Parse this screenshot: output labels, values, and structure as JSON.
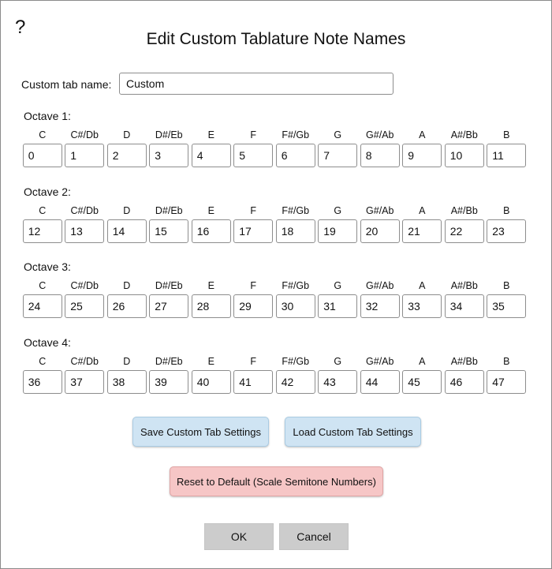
{
  "dialog": {
    "help_symbol": "?",
    "title": "Edit Custom Tablature Note Names",
    "custom_tab_name_label": "Custom tab name:",
    "custom_tab_name_value": "Custom"
  },
  "note_names": [
    "C",
    "C#/Db",
    "D",
    "D#/Eb",
    "E",
    "F",
    "F#/Gb",
    "G",
    "G#/Ab",
    "A",
    "A#/Bb",
    "B"
  ],
  "octaves": [
    {
      "label": "Octave 1:",
      "values": [
        "0",
        "1",
        "2",
        "3",
        "4",
        "5",
        "6",
        "7",
        "8",
        "9",
        "10",
        "11"
      ]
    },
    {
      "label": "Octave 2:",
      "values": [
        "12",
        "13",
        "14",
        "15",
        "16",
        "17",
        "18",
        "19",
        "20",
        "21",
        "22",
        "23"
      ]
    },
    {
      "label": "Octave 3:",
      "values": [
        "24",
        "25",
        "26",
        "27",
        "28",
        "29",
        "30",
        "31",
        "32",
        "33",
        "34",
        "35"
      ]
    },
    {
      "label": "Octave 4:",
      "values": [
        "36",
        "37",
        "38",
        "39",
        "40",
        "41",
        "42",
        "43",
        "44",
        "45",
        "46",
        "47"
      ]
    }
  ],
  "buttons": {
    "save": "Save Custom Tab Settings",
    "load": "Load Custom Tab Settings",
    "reset": "Reset to Default (Scale Semitone Numbers)",
    "ok": "OK",
    "cancel": "Cancel"
  },
  "colors": {
    "save_load_button_bg": "#cfe4f3",
    "reset_button_bg": "#f6c6c6",
    "ok_cancel_button_bg": "#cccccc"
  }
}
